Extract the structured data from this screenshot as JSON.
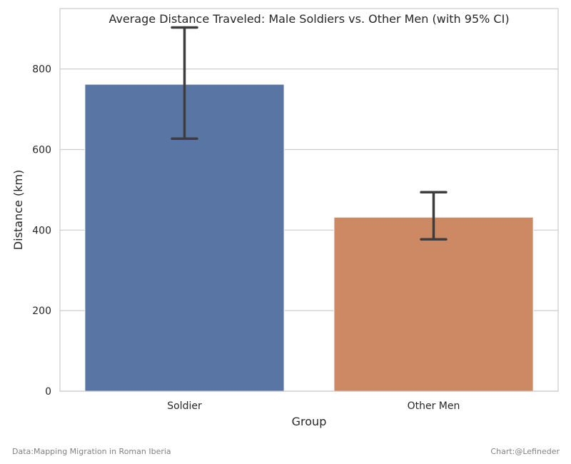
{
  "chart_data": {
    "type": "bar",
    "title": "Average Distance Traveled: Male Soldiers vs. Other Men (with 95% CI)",
    "xlabel": "Group",
    "ylabel": "Distance (km)",
    "categories": [
      "Soldier",
      "Other Men"
    ],
    "values": [
      762,
      432
    ],
    "ci_lower": [
      627,
      377
    ],
    "ci_upper": [
      903,
      494
    ],
    "bar_colors": [
      "#5875a4",
      "#cc8963"
    ],
    "error_bar_color": "#3d3d3d",
    "ylim": [
      0,
      950
    ],
    "yticks": [
      0,
      200,
      400,
      600,
      800
    ],
    "grid": "horizontal",
    "legend": "none"
  },
  "footer": {
    "source": "Data:Mapping Migration in Roman Iberia",
    "credit": "Chart:@Lefineder"
  }
}
